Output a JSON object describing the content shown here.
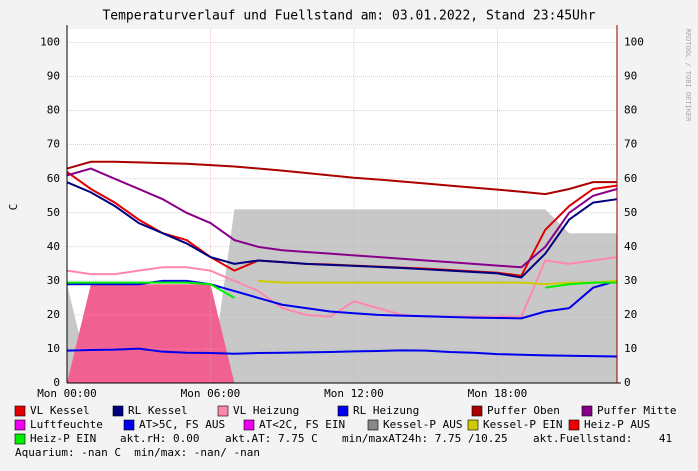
{
  "chart_data": {
    "type": "line",
    "title": "Temperaturverlauf und Fuellstand am: 03.01.2022, Stand 23:45Uhr",
    "y_label": "C",
    "watermark": "RRDTOOL / TOBI OETIKER",
    "x": [
      0,
      1,
      2,
      3,
      4,
      5,
      6,
      7,
      8,
      9,
      10,
      11,
      12,
      13,
      14,
      15,
      16,
      17,
      18,
      19,
      20,
      21,
      22,
      23
    ],
    "xlim": [
      0,
      23
    ],
    "xticks": [
      {
        "value": 0,
        "label": "Mon 00:00"
      },
      {
        "value": 6,
        "label": "Mon 06:00"
      },
      {
        "value": 12,
        "label": "Mon 12:00"
      },
      {
        "value": 18,
        "label": "Mon 18:00"
      }
    ],
    "ylim": [
      0,
      104
    ],
    "yticks": [
      0,
      10,
      20,
      30,
      40,
      50,
      60,
      70,
      80,
      90,
      100
    ],
    "grid": true,
    "series": [
      {
        "name": "Kessel-P AUS",
        "color": "#c8c8c8",
        "style": "area",
        "values": [
          29,
          0,
          0,
          0,
          0,
          0,
          0,
          51,
          51,
          51,
          51,
          51,
          51,
          51,
          51,
          51,
          51,
          51,
          51,
          51,
          51,
          44,
          44,
          44
        ]
      },
      {
        "name": "Heiz-P AUS",
        "color": "#f06090",
        "style": "area",
        "values": [
          0,
          29,
          29,
          29,
          29,
          29,
          29,
          0,
          0,
          0,
          0,
          0,
          0,
          0,
          0,
          0,
          0,
          0,
          0,
          0,
          0,
          0,
          0,
          0
        ]
      },
      {
        "name": "VL Kessel",
        "color": "#e00000",
        "values": [
          62,
          57,
          53,
          48,
          44,
          42,
          37,
          33,
          36,
          35.5,
          35,
          34.8,
          34.5,
          34.2,
          33.9,
          33.6,
          33.2,
          32.8,
          32.4,
          31.5,
          45,
          52,
          57,
          58
        ]
      },
      {
        "name": "RL Kessel",
        "color": "#000080",
        "values": [
          59,
          56,
          52,
          47,
          44,
          41,
          37,
          35,
          36,
          35.5,
          35,
          34.7,
          34.4,
          34.1,
          33.8,
          33.4,
          33,
          32.6,
          32.2,
          31,
          38,
          48,
          53,
          54
        ]
      },
      {
        "name": "VL Heizung",
        "color": "#ff88aa",
        "values": [
          33,
          32,
          32,
          33,
          34,
          34,
          33,
          30,
          27,
          22,
          20,
          19.5,
          24,
          22,
          20,
          19.5,
          19.5,
          19.5,
          19.5,
          19.5,
          36,
          35,
          36,
          37
        ]
      },
      {
        "name": "RL Heizung",
        "color": "#0000ee",
        "values": [
          29,
          29,
          29,
          29,
          30,
          30,
          29,
          27,
          25,
          23,
          22,
          21,
          20.5,
          20,
          19.8,
          19.6,
          19.4,
          19.2,
          19.1,
          19,
          21,
          22,
          28,
          30
        ]
      },
      {
        "name": "Puffer Oben",
        "color": "#aa0000",
        "values": [
          63,
          65,
          65,
          64.8,
          64.6,
          64.4,
          64,
          63.6,
          63,
          62.4,
          61.7,
          61,
          60.3,
          59.8,
          59.2,
          58.6,
          58,
          57.4,
          56.8,
          56.2,
          55.5,
          57,
          59,
          59
        ]
      },
      {
        "name": "Puffer Mitte",
        "color": "#880088",
        "values": [
          61,
          63,
          60,
          57,
          54,
          50,
          47,
          42,
          40,
          39,
          38.5,
          38,
          37.5,
          37,
          36.5,
          36,
          35.5,
          35,
          34.5,
          34,
          40,
          50,
          55,
          57
        ]
      },
      {
        "name": "Luftfeuchte",
        "color": "#ee00ee",
        "values": [
          null,
          null,
          null,
          null,
          null,
          null,
          null,
          null,
          null,
          null,
          null,
          null,
          null,
          null,
          null,
          null,
          null,
          null,
          null,
          null,
          null,
          null,
          null,
          null
        ]
      },
      {
        "name": "AT>5C, FS AUS",
        "color": "#0000ee",
        "values": [
          9.5,
          9.7,
          9.8,
          10.1,
          9.2,
          8.9,
          8.8,
          8.6,
          8.8,
          8.9,
          9,
          9.1,
          9.3,
          9.4,
          9.6,
          9.5,
          9.1,
          8.9,
          8.5,
          8.3,
          8.1,
          8,
          7.9,
          7.8
        ]
      },
      {
        "name": "AT<2C, FS EIN",
        "color": "#ee00ee",
        "values": [
          null,
          null,
          null,
          null,
          null,
          null,
          null,
          null,
          null,
          null,
          null,
          null,
          null,
          null,
          null,
          null,
          null,
          null,
          null,
          null,
          null,
          null,
          null,
          null
        ]
      },
      {
        "name": "Kessel-P EIN",
        "color": "#cccc00",
        "values": [
          null,
          null,
          null,
          null,
          null,
          null,
          null,
          null,
          30,
          29.5,
          29.5,
          29.5,
          29.5,
          29.5,
          29.5,
          29.5,
          29.5,
          29.5,
          29.5,
          29.5,
          29,
          29.5,
          29.5,
          30
        ]
      },
      {
        "name": "Heiz-P EIN",
        "color": "#00ee00",
        "values": [
          29.5,
          29.5,
          29.5,
          29.5,
          29.5,
          29.5,
          29,
          25,
          null,
          null,
          null,
          null,
          null,
          null,
          null,
          null,
          null,
          null,
          null,
          null,
          28,
          29,
          29.5,
          29.5
        ]
      }
    ],
    "legend_text": [
      "akt.rH: 0.00",
      "akt.AT: 7.75 C",
      "min/maxAT24h: 7.75 /10.25",
      "akt.Fuellstand:    41",
      "Aquarium: -nan C  min/max: -nan/ -nan"
    ]
  }
}
